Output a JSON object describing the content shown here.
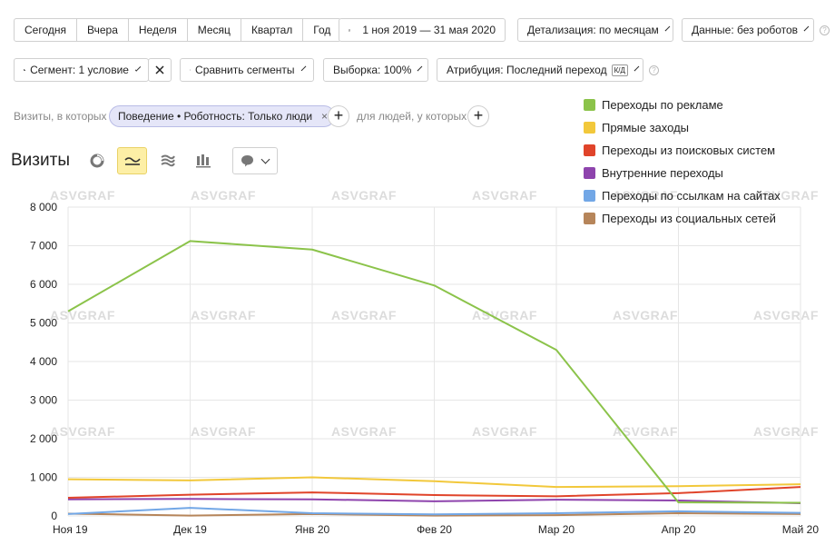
{
  "period_buttons": [
    "Сегодня",
    "Вчера",
    "Неделя",
    "Месяц",
    "Квартал",
    "Год"
  ],
  "date_range": "1 ноя 2019 — 31 мая 2020",
  "detail": "Детализация: по месяцам",
  "data_filter": "Данные: без роботов",
  "segment": "Сегмент: 1 условие",
  "compare": "Сравнить сегменты",
  "sample": "Выборка: 100%",
  "attribution": "Атрибуция: Последний переход",
  "attribution_badge": "К/Д",
  "filters": {
    "prefix": "Визиты, в которых",
    "chip": "Поведение • Роботность: Только люди",
    "people": "для людей, у которых"
  },
  "title": "Визиты",
  "watermark": "ASVGRAF",
  "icons": {
    "calendar": "calendar-icon",
    "segment": "pie-icon",
    "compare": "segments-icon",
    "views": [
      "pie-chart-icon",
      "line-chart-icon",
      "area-chart-icon",
      "bar-chart-icon"
    ],
    "annotations": "comment-icon"
  },
  "chart_data": {
    "type": "line",
    "categories": [
      "Ноя 19",
      "Дек 19",
      "Янв 20",
      "Фев 20",
      "Мар 20",
      "Апр 20",
      "Май 20"
    ],
    "ylim": [
      0,
      8000
    ],
    "yticks": [
      0,
      1000,
      2000,
      3000,
      4000,
      5000,
      6000,
      7000,
      8000
    ],
    "ytick_labels": [
      "0",
      "1 000",
      "2 000",
      "3 000",
      "4 000",
      "5 000",
      "6 000",
      "7 000",
      "8 000"
    ],
    "grid": true,
    "legend_position": "top-right",
    "series": [
      {
        "name": "Переходы по рекламе",
        "color": "#8bc34a",
        "values": [
          5300,
          7120,
          6900,
          5970,
          4300,
          350,
          340
        ]
      },
      {
        "name": "Прямые заходы",
        "color": "#f2c83b",
        "values": [
          950,
          920,
          1000,
          900,
          750,
          770,
          820
        ]
      },
      {
        "name": "Переходы из поисковых систем",
        "color": "#e0442a",
        "values": [
          470,
          550,
          610,
          540,
          510,
          590,
          750
        ]
      },
      {
        "name": "Внутренние переходы",
        "color": "#8e44ad",
        "values": [
          430,
          440,
          430,
          380,
          420,
          400,
          330
        ]
      },
      {
        "name": "Переходы по ссылкам на сайтах",
        "color": "#72a7e6",
        "values": [
          50,
          210,
          70,
          40,
          70,
          120,
          80
        ]
      },
      {
        "name": "Переходы из социальных сетей",
        "color": "#b6855a",
        "values": [
          60,
          10,
          50,
          10,
          20,
          70,
          50
        ]
      }
    ]
  }
}
